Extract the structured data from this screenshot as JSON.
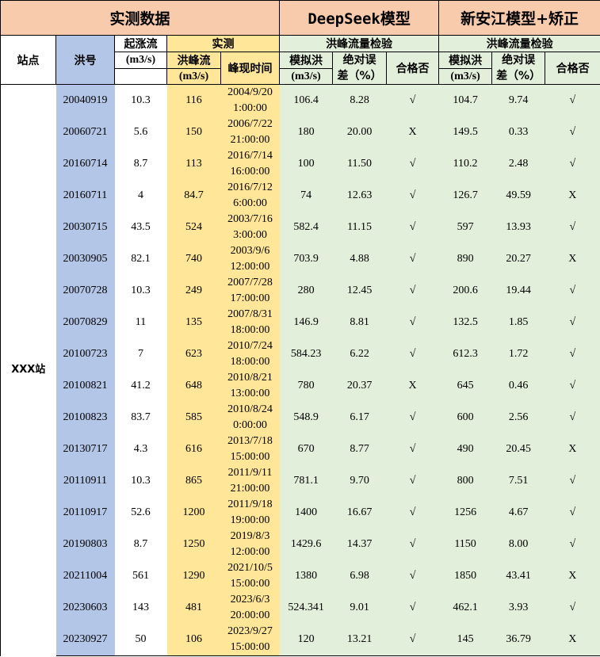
{
  "header": {
    "group_measured": "实测数据",
    "group_deepseek": "DeepSeek模型",
    "group_xaj": "新安江模型+矫正",
    "station": "站点",
    "flood_id": "洪号",
    "base_flow": "起涨流",
    "base_flow_unit": "(m3/s)",
    "measured": "实测",
    "peak_flow": "洪峰流",
    "peak_flow_unit": "(m3/s)",
    "peak_time": "峰现时间",
    "ds_check": "洪峰流量检验",
    "ds_sim": "模拟洪",
    "ds_sim_unit": "(m3/s)",
    "ds_err_1": "绝对误",
    "ds_err_2": "差（%）",
    "ds_pass": "合格否",
    "xaj_check": "洪峰流量检验",
    "xaj_sim": "模拟洪",
    "xaj_sim_unit": "(m3/s)",
    "xaj_err_1": "绝对误",
    "xaj_err_2": "差（%）",
    "xaj_pass": "合格否"
  },
  "station_name": "XXX站",
  "colors": {
    "title": "#f8cbad",
    "flood_id": "#b4c6e7",
    "measured": "#ffe699",
    "model": "#e2efda"
  },
  "rows": [
    {
      "id": "20040919",
      "base": "10.3",
      "peak": "116",
      "date": "2004/9/20",
      "time": "1:00:00",
      "ds_sim": "106.4",
      "ds_err": "8.28",
      "ds_ok": "√",
      "xaj_sim": "104.7",
      "xaj_err": "9.74",
      "xaj_ok": "√"
    },
    {
      "id": "20060721",
      "base": "5.6",
      "peak": "150",
      "date": "2006/7/22",
      "time": "21:00:00",
      "ds_sim": "180",
      "ds_err": "20.00",
      "ds_ok": "X",
      "xaj_sim": "149.5",
      "xaj_err": "0.33",
      "xaj_ok": "√"
    },
    {
      "id": "20160714",
      "base": "8.7",
      "peak": "113",
      "date": "2016/7/14",
      "time": "16:00:00",
      "ds_sim": "100",
      "ds_err": "11.50",
      "ds_ok": "√",
      "xaj_sim": "110.2",
      "xaj_err": "2.48",
      "xaj_ok": "√"
    },
    {
      "id": "20160711",
      "base": "4",
      "peak": "84.7",
      "date": "2016/7/12",
      "time": "6:00:00",
      "ds_sim": "74",
      "ds_err": "12.63",
      "ds_ok": "√",
      "xaj_sim": "126.7",
      "xaj_err": "49.59",
      "xaj_ok": "X"
    },
    {
      "id": "20030715",
      "base": "43.5",
      "peak": "524",
      "date": "2003/7/16",
      "time": "3:00:00",
      "ds_sim": "582.4",
      "ds_err": "11.15",
      "ds_ok": "√",
      "xaj_sim": "597",
      "xaj_err": "13.93",
      "xaj_ok": "√"
    },
    {
      "id": "20030905",
      "base": "82.1",
      "peak": "740",
      "date": "2003/9/6",
      "time": "12:00:00",
      "ds_sim": "703.9",
      "ds_err": "4.88",
      "ds_ok": "√",
      "xaj_sim": "890",
      "xaj_err": "20.27",
      "xaj_ok": "X"
    },
    {
      "id": "20070728",
      "base": "10.3",
      "peak": "249",
      "date": "2007/7/28",
      "time": "17:00:00",
      "ds_sim": "280",
      "ds_err": "12.45",
      "ds_ok": "√",
      "xaj_sim": "200.6",
      "xaj_err": "19.44",
      "xaj_ok": "√"
    },
    {
      "id": "20070829",
      "base": "11",
      "peak": "135",
      "date": "2007/8/31",
      "time": "18:00:00",
      "ds_sim": "146.9",
      "ds_err": "8.81",
      "ds_ok": "√",
      "xaj_sim": "132.5",
      "xaj_err": "1.85",
      "xaj_ok": "√"
    },
    {
      "id": "20100723",
      "base": "7",
      "peak": "623",
      "date": "2010/7/24",
      "time": "18:00:00",
      "ds_sim": "584.23",
      "ds_err": "6.22",
      "ds_ok": "√",
      "xaj_sim": "612.3",
      "xaj_err": "1.72",
      "xaj_ok": "√"
    },
    {
      "id": "20100821",
      "base": "41.2",
      "peak": "648",
      "date": "2010/8/21",
      "time": "13:00:00",
      "ds_sim": "780",
      "ds_err": "20.37",
      "ds_ok": "X",
      "xaj_sim": "645",
      "xaj_err": "0.46",
      "xaj_ok": "√"
    },
    {
      "id": "20100823",
      "base": "83.7",
      "peak": "585",
      "date": "2010/8/24",
      "time": "0:00:00",
      "ds_sim": "548.9",
      "ds_err": "6.17",
      "ds_ok": "√",
      "xaj_sim": "600",
      "xaj_err": "2.56",
      "xaj_ok": "√"
    },
    {
      "id": "20130717",
      "base": "4.3",
      "peak": "616",
      "date": "2013/7/18",
      "time": "15:00:00",
      "ds_sim": "670",
      "ds_err": "8.77",
      "ds_ok": "√",
      "xaj_sim": "490",
      "xaj_err": "20.45",
      "xaj_ok": "X"
    },
    {
      "id": "20110911",
      "base": "10.3",
      "peak": "865",
      "date": "2011/9/11",
      "time": "21:00:00",
      "ds_sim": "781.1",
      "ds_err": "9.70",
      "ds_ok": "√",
      "xaj_sim": "800",
      "xaj_err": "7.51",
      "xaj_ok": "√"
    },
    {
      "id": "20110917",
      "base": "52.6",
      "peak": "1200",
      "date": "2011/9/18",
      "time": "19:00:00",
      "ds_sim": "1400",
      "ds_err": "16.67",
      "ds_ok": "√",
      "xaj_sim": "1256",
      "xaj_err": "4.67",
      "xaj_ok": "√"
    },
    {
      "id": "20190803",
      "base": "8.7",
      "peak": "1250",
      "date": "2019/8/3",
      "time": "12:00:00",
      "ds_sim": "1429.6",
      "ds_err": "14.37",
      "ds_ok": "√",
      "xaj_sim": "1150",
      "xaj_err": "8.00",
      "xaj_ok": "√"
    },
    {
      "id": "20211004",
      "base": "561",
      "peak": "1290",
      "date": "2021/10/5",
      "time": "15:00:00",
      "ds_sim": "1380",
      "ds_err": "6.98",
      "ds_ok": "√",
      "xaj_sim": "1850",
      "xaj_err": "43.41",
      "xaj_ok": "X"
    },
    {
      "id": "20230603",
      "base": "143",
      "peak": "481",
      "date": "2023/6/3",
      "time": "20:00:00",
      "ds_sim": "524.341",
      "ds_err": "9.01",
      "ds_ok": "√",
      "xaj_sim": "462.1",
      "xaj_err": "3.93",
      "xaj_ok": "√"
    },
    {
      "id": "20230927",
      "base": "50",
      "peak": "106",
      "date": "2023/9/27",
      "time": "15:00:00",
      "ds_sim": "120",
      "ds_err": "13.21",
      "ds_ok": "√",
      "xaj_sim": "145",
      "xaj_err": "36.79",
      "xaj_ok": "X"
    }
  ]
}
